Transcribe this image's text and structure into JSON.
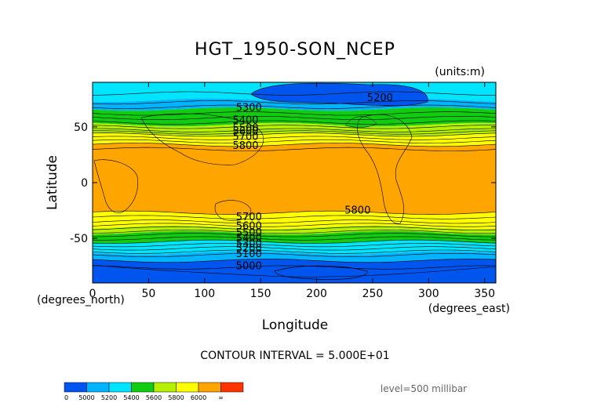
{
  "chart_data": {
    "type": "contour-map",
    "title": "HGT_1950-SON_NCEP",
    "units": "(units:m)",
    "xlabel": "Longitude",
    "ylabel": "Latitude",
    "x_unit_label": "(degrees_east)",
    "y_unit_label": "(degrees_north)",
    "xlim": [
      0,
      360
    ],
    "ylim": [
      -90,
      90
    ],
    "x_ticks": [
      0,
      50,
      100,
      150,
      200,
      250,
      300,
      350
    ],
    "y_ticks": [
      -50,
      0,
      50
    ],
    "contour_interval_text": "CONTOUR INTERVAL = 5.000E+01",
    "level_text": "level=500 millibar",
    "bands": [
      {
        "lat_top": 90,
        "lat_bottom": 74,
        "color": "#00e5ff"
      },
      {
        "lat_top": 74,
        "lat_bottom": 66,
        "color": "#00b4ff"
      },
      {
        "lat_top": 66,
        "lat_bottom": 52,
        "color": "#11cc11"
      },
      {
        "lat_top": 52,
        "lat_bottom": 43,
        "color": "#b4f000"
      },
      {
        "lat_top": 43,
        "lat_bottom": 34,
        "color": "#ffff00"
      },
      {
        "lat_top": 34,
        "lat_bottom": -27,
        "color": "#ffa500"
      },
      {
        "lat_top": -27,
        "lat_bottom": -40,
        "color": "#ffff00"
      },
      {
        "lat_top": -40,
        "lat_bottom": -45,
        "color": "#b4f000"
      },
      {
        "lat_top": -45,
        "lat_bottom": -53,
        "color": "#11cc11"
      },
      {
        "lat_top": -53,
        "lat_bottom": -63,
        "color": "#00e5ff"
      },
      {
        "lat_top": -63,
        "lat_bottom": -70,
        "color": "#00b4ff"
      },
      {
        "lat_top": -70,
        "lat_bottom": -90,
        "color": "#0055ee"
      }
    ],
    "contour_labels": [
      {
        "text": "5200",
        "lon": 245,
        "lat": 76
      },
      {
        "text": "5300",
        "lon": 128,
        "lat": 67
      },
      {
        "text": "5400",
        "lon": 125,
        "lat": 56
      },
      {
        "text": "5500",
        "lon": 125,
        "lat": 49
      },
      {
        "text": "5600",
        "lon": 125,
        "lat": 46
      },
      {
        "text": "5700",
        "lon": 125,
        "lat": 41
      },
      {
        "text": "5800",
        "lon": 125,
        "lat": 33
      },
      {
        "text": "5800",
        "lon": 225,
        "lat": -25
      },
      {
        "text": "5700",
        "lon": 128,
        "lat": -31
      },
      {
        "text": "5600",
        "lon": 128,
        "lat": -39
      },
      {
        "text": "5500",
        "lon": 128,
        "lat": -45
      },
      {
        "text": "5400",
        "lon": 128,
        "lat": -50
      },
      {
        "text": "5300",
        "lon": 128,
        "lat": -55
      },
      {
        "text": "5200",
        "lon": 128,
        "lat": -59
      },
      {
        "text": "5100",
        "lon": 128,
        "lat": -64
      },
      {
        "text": "5000",
        "lon": 128,
        "lat": -75
      }
    ],
    "colorbar": {
      "ticks": [
        "0",
        "5000",
        "5200",
        "5400",
        "5600",
        "5800",
        "6000",
        "∞"
      ],
      "colors": [
        "#0055ee",
        "#00b4ff",
        "#00e5ff",
        "#11cc11",
        "#b4f000",
        "#ffff00",
        "#ffa500",
        "#ff3300"
      ]
    }
  }
}
